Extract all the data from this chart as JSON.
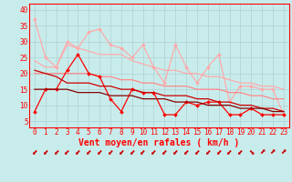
{
  "title": "",
  "xlabel": "Vent moyen/en rafales ( km/h )",
  "ylabel": "",
  "background_color": "#c8ecec",
  "grid_color": "#b0d0d0",
  "text_color": "#ff0000",
  "x": [
    0,
    1,
    2,
    3,
    4,
    5,
    6,
    7,
    8,
    9,
    10,
    11,
    12,
    13,
    14,
    15,
    16,
    17,
    18,
    19,
    20,
    21,
    22,
    23
  ],
  "ylim": [
    3,
    42
  ],
  "yticks": [
    5,
    10,
    15,
    20,
    25,
    30,
    35,
    40
  ],
  "line1": {
    "y": [
      37,
      25,
      22,
      30,
      28,
      33,
      34,
      29,
      28,
      25,
      29,
      22,
      17,
      29,
      22,
      17,
      22,
      26,
      11,
      16,
      16,
      15,
      15,
      7
    ],
    "color": "#ffaaaa",
    "lw": 0.9,
    "marker": "D",
    "ms": 2.0
  },
  "line2": {
    "y": [
      24,
      22,
      22,
      29,
      28,
      27,
      26,
      26,
      26,
      24,
      23,
      22,
      21,
      21,
      20,
      20,
      19,
      19,
      18,
      17,
      17,
      16,
      16,
      15
    ],
    "color": "#ffaaaa",
    "lw": 0.9,
    "marker": null,
    "ms": 0
  },
  "line3": {
    "y": [
      20,
      20,
      20,
      20,
      20,
      20,
      19,
      19,
      18,
      18,
      17,
      17,
      16,
      16,
      16,
      15,
      15,
      15,
      14,
      14,
      13,
      13,
      12,
      12
    ],
    "color": "#ff8888",
    "lw": 0.9,
    "marker": null,
    "ms": 0
  },
  "line4": {
    "y": [
      8,
      15,
      15,
      21,
      26,
      20,
      19,
      12,
      8,
      15,
      14,
      14,
      7,
      7,
      11,
      10,
      11,
      11,
      7,
      7,
      9,
      7,
      7,
      7
    ],
    "color": "#ff0000",
    "lw": 0.9,
    "marker": "D",
    "ms": 2.0
  },
  "line5": {
    "y": [
      21,
      20,
      19,
      17,
      17,
      17,
      16,
      16,
      15,
      15,
      14,
      14,
      13,
      13,
      13,
      12,
      12,
      11,
      11,
      10,
      10,
      9,
      9,
      8
    ],
    "color": "#cc0000",
    "lw": 0.9,
    "marker": null,
    "ms": 0
  },
  "line6": {
    "y": [
      15,
      15,
      15,
      15,
      14,
      14,
      14,
      13,
      13,
      13,
      12,
      12,
      12,
      11,
      11,
      11,
      10,
      10,
      10,
      9,
      9,
      9,
      8,
      8
    ],
    "color": "#880000",
    "lw": 0.9,
    "marker": null,
    "ms": 0
  },
  "tick_fontsize": 5.5,
  "xlabel_fontsize": 7,
  "arrow_color": "#cc0000",
  "arrow_chars": [
    "⬋",
    "⬋",
    "⬋",
    "⬋",
    "⬋",
    "⬋",
    "⬋",
    "⬋",
    "⬋",
    "⬋",
    "⬋",
    "⬋",
    "⬋",
    "⬋",
    "⬋",
    "⬋",
    "⬋",
    "⬋",
    "⬋",
    "⬋",
    "⬊",
    "⬈",
    "⬈",
    "⬈"
  ]
}
